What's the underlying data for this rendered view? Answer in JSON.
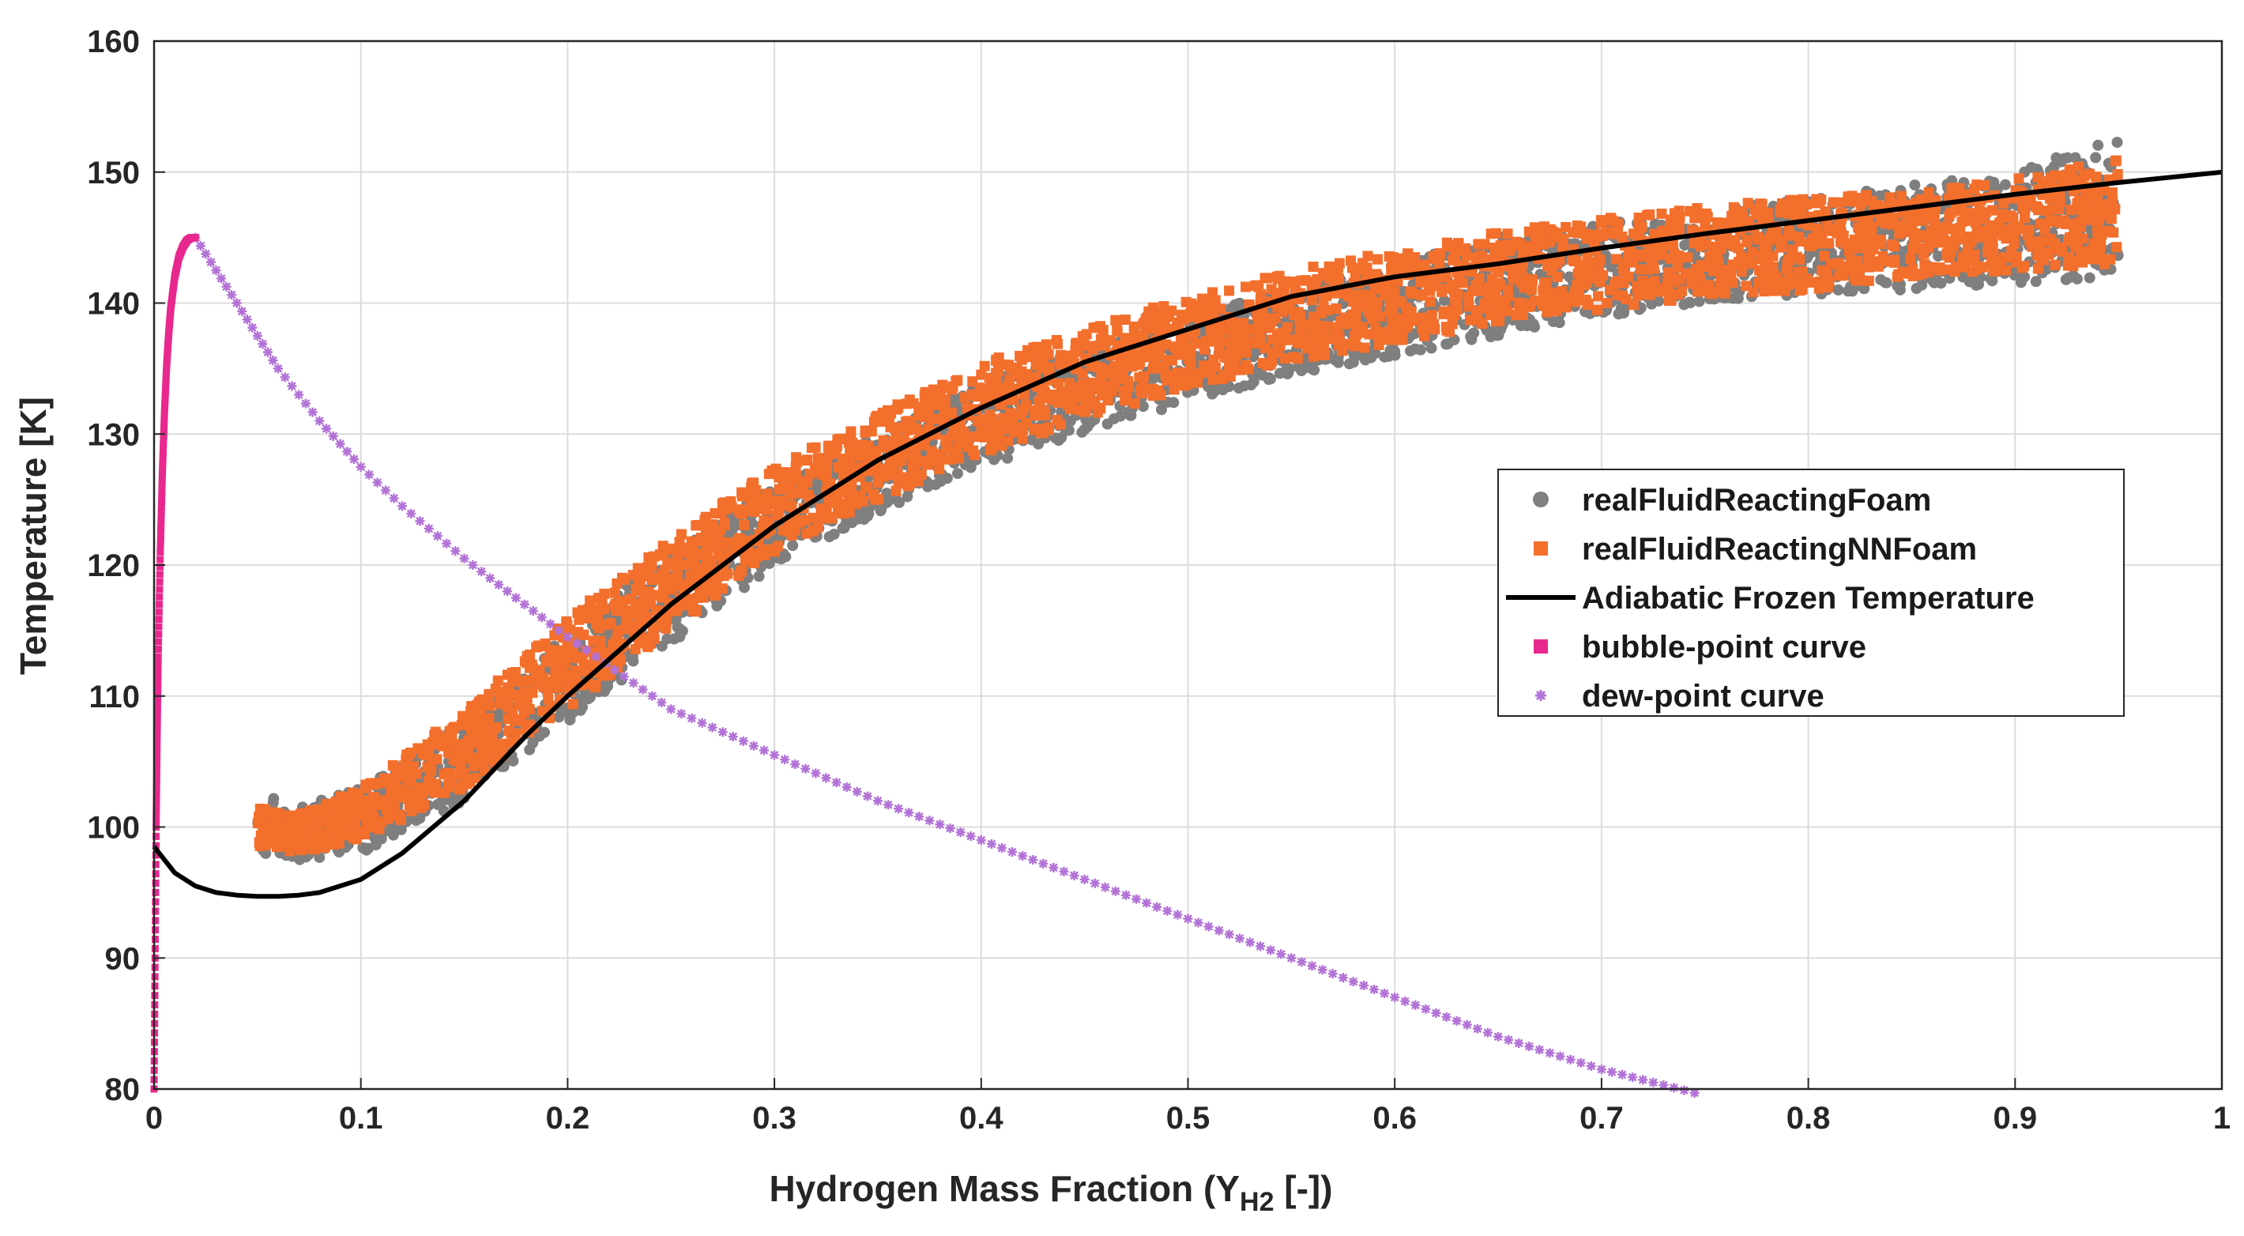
{
  "chart_data": {
    "type": "scatter",
    "xlabel_main": "Hydrogen Mass Fraction (Y",
    "xlabel_sub": "H2",
    "xlabel_tail": " [-])",
    "ylabel": "Temperature [K]",
    "xlim": [
      0,
      1
    ],
    "ylim": [
      80,
      160
    ],
    "x_ticks": [
      "0",
      "0.1",
      "0.2",
      "0.3",
      "0.4",
      "0.5",
      "0.6",
      "0.7",
      "0.8",
      "0.9",
      "1"
    ],
    "y_ticks": [
      "80",
      "90",
      "100",
      "110",
      "120",
      "130",
      "140",
      "150",
      "160"
    ],
    "grid": true,
    "legend_position": "right-center",
    "series": [
      {
        "name": "realFluidReactingFoam",
        "color": "#7f7f7f",
        "marker": "circle",
        "band": [
          {
            "x": 0.05,
            "low": 98,
            "high": 103
          },
          {
            "x": 0.07,
            "low": 97.5,
            "high": 101.5
          },
          {
            "x": 0.1,
            "low": 98,
            "high": 103
          },
          {
            "x": 0.15,
            "low": 102,
            "high": 108
          },
          {
            "x": 0.2,
            "low": 108,
            "high": 115
          },
          {
            "x": 0.25,
            "low": 114,
            "high": 121
          },
          {
            "x": 0.3,
            "low": 120,
            "high": 126
          },
          {
            "x": 0.35,
            "low": 124,
            "high": 130
          },
          {
            "x": 0.4,
            "low": 127.5,
            "high": 134
          },
          {
            "x": 0.45,
            "low": 130,
            "high": 136.5
          },
          {
            "x": 0.5,
            "low": 132.5,
            "high": 139
          },
          {
            "x": 0.55,
            "low": 134.5,
            "high": 141
          },
          {
            "x": 0.6,
            "low": 136,
            "high": 143
          },
          {
            "x": 0.65,
            "low": 137.5,
            "high": 145
          },
          {
            "x": 0.7,
            "low": 139,
            "high": 146
          },
          {
            "x": 0.75,
            "low": 140,
            "high": 147
          },
          {
            "x": 0.8,
            "low": 140.5,
            "high": 148
          },
          {
            "x": 0.85,
            "low": 141,
            "high": 149
          },
          {
            "x": 0.9,
            "low": 141.5,
            "high": 150
          },
          {
            "x": 0.95,
            "low": 142,
            "high": 153
          }
        ]
      },
      {
        "name": "realFluidReactingNNFoam",
        "color": "#f36f2c",
        "marker": "square",
        "band": [
          {
            "x": 0.05,
            "low": 98.5,
            "high": 101.5
          },
          {
            "x": 0.07,
            "low": 98,
            "high": 101
          },
          {
            "x": 0.1,
            "low": 99,
            "high": 103
          },
          {
            "x": 0.15,
            "low": 103,
            "high": 109
          },
          {
            "x": 0.2,
            "low": 109,
            "high": 116
          },
          {
            "x": 0.25,
            "low": 115,
            "high": 122
          },
          {
            "x": 0.3,
            "low": 121,
            "high": 127.5
          },
          {
            "x": 0.35,
            "low": 125,
            "high": 131.5
          },
          {
            "x": 0.4,
            "low": 128.5,
            "high": 135.5
          },
          {
            "x": 0.45,
            "low": 131,
            "high": 138
          },
          {
            "x": 0.5,
            "low": 133.5,
            "high": 140.5
          },
          {
            "x": 0.55,
            "low": 135.5,
            "high": 142.5
          },
          {
            "x": 0.6,
            "low": 137,
            "high": 144
          },
          {
            "x": 0.65,
            "low": 138.5,
            "high": 145.5
          },
          {
            "x": 0.7,
            "low": 139.5,
            "high": 146.5
          },
          {
            "x": 0.75,
            "low": 140.5,
            "high": 147.5
          },
          {
            "x": 0.8,
            "low": 141,
            "high": 148
          },
          {
            "x": 0.85,
            "low": 142,
            "high": 148.5
          },
          {
            "x": 0.9,
            "low": 142.5,
            "high": 149.5
          },
          {
            "x": 0.95,
            "low": 143,
            "high": 151
          }
        ]
      },
      {
        "name": "Adiabatic Frozen Temperature",
        "color": "#000000",
        "marker": "line",
        "x": [
          0,
          0.01,
          0.02,
          0.03,
          0.04,
          0.05,
          0.06,
          0.07,
          0.08,
          0.1,
          0.12,
          0.15,
          0.18,
          0.2,
          0.25,
          0.3,
          0.35,
          0.4,
          0.45,
          0.5,
          0.55,
          0.6,
          0.65,
          0.7,
          0.75,
          0.8,
          0.85,
          0.9,
          0.95,
          1.0
        ],
        "y": [
          98.5,
          96.5,
          95.5,
          95,
          94.8,
          94.7,
          94.7,
          94.8,
          95,
          96,
          98,
          102,
          107,
          110,
          117,
          123,
          128,
          132,
          135.5,
          138,
          140.5,
          142,
          143,
          144.2,
          145.3,
          146.3,
          147.3,
          148.3,
          149.2,
          150
        ]
      },
      {
        "name": "bubble-point curve",
        "color": "#e8288e",
        "marker": "square",
        "x": [
          0,
          0.0005,
          0.001,
          0.0015,
          0.002,
          0.003,
          0.004,
          0.005,
          0.006,
          0.007,
          0.008,
          0.01,
          0.012,
          0.014,
          0.016,
          0.018,
          0.02
        ],
        "y": [
          80,
          90,
          100,
          107,
          113,
          121,
          127,
          131.5,
          135,
          137.5,
          139.5,
          142,
          143.5,
          144.3,
          144.8,
          145,
          145
        ]
      },
      {
        "name": "dew-point curve",
        "color": "#b272d6",
        "marker": "star",
        "x": [
          0.02,
          0.03,
          0.04,
          0.05,
          0.06,
          0.08,
          0.1,
          0.12,
          0.15,
          0.2,
          0.25,
          0.3,
          0.35,
          0.4,
          0.45,
          0.5,
          0.55,
          0.6,
          0.65,
          0.7,
          0.75
        ],
        "y": [
          145,
          142.5,
          140,
          137.5,
          135,
          131,
          127.5,
          124.5,
          120.5,
          114.5,
          109,
          105.5,
          102,
          99,
          96,
          93,
          90,
          87,
          84,
          81.5,
          79.5
        ]
      }
    ]
  }
}
